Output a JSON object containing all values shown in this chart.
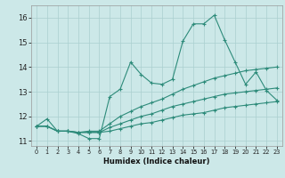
{
  "xlabel": "Humidex (Indice chaleur)",
  "xlim": [
    -0.5,
    23.5
  ],
  "ylim": [
    10.8,
    16.5
  ],
  "yticks": [
    11,
    12,
    13,
    14,
    15,
    16
  ],
  "xtick_labels": [
    "0",
    "1",
    "2",
    "3",
    "4",
    "5",
    "6",
    "7",
    "8",
    "9",
    "10",
    "11",
    "12",
    "13",
    "14",
    "15",
    "16",
    "17",
    "18",
    "19",
    "20",
    "21",
    "22",
    "23"
  ],
  "xtick_positions": [
    0,
    1,
    2,
    3,
    4,
    5,
    6,
    7,
    8,
    9,
    10,
    11,
    12,
    13,
    14,
    15,
    16,
    17,
    18,
    19,
    20,
    21,
    22,
    23
  ],
  "bg_color": "#cce8e8",
  "grid_color": "#aacfcf",
  "line_color": "#2d8b7a",
  "line1_y": [
    11.6,
    11.9,
    11.4,
    11.4,
    11.3,
    11.1,
    11.1,
    12.8,
    13.1,
    14.2,
    13.7,
    13.35,
    13.3,
    13.5,
    15.05,
    15.75,
    15.75,
    16.1,
    15.1,
    14.2,
    13.3,
    13.8,
    13.05,
    12.65
  ],
  "line2_y": [
    11.6,
    11.6,
    11.4,
    11.4,
    11.35,
    11.4,
    11.4,
    11.7,
    12.0,
    12.2,
    12.4,
    12.55,
    12.7,
    12.9,
    13.1,
    13.25,
    13.4,
    13.55,
    13.65,
    13.75,
    13.85,
    13.9,
    13.95,
    14.0
  ],
  "line3_y": [
    11.6,
    11.6,
    11.4,
    11.4,
    11.35,
    11.35,
    11.35,
    11.55,
    11.7,
    11.85,
    12.0,
    12.1,
    12.25,
    12.4,
    12.5,
    12.6,
    12.7,
    12.8,
    12.9,
    12.95,
    13.0,
    13.05,
    13.1,
    13.15
  ],
  "line4_y": [
    11.6,
    11.6,
    11.4,
    11.4,
    11.35,
    11.35,
    11.35,
    11.4,
    11.5,
    11.6,
    11.7,
    11.75,
    11.85,
    11.95,
    12.05,
    12.1,
    12.15,
    12.25,
    12.35,
    12.4,
    12.45,
    12.5,
    12.55,
    12.6
  ],
  "xlabel_fontsize": 6,
  "ytick_fontsize": 6,
  "xtick_fontsize": 4.8,
  "linewidth": 0.8,
  "markersize": 3.5,
  "grid_linewidth": 0.5
}
